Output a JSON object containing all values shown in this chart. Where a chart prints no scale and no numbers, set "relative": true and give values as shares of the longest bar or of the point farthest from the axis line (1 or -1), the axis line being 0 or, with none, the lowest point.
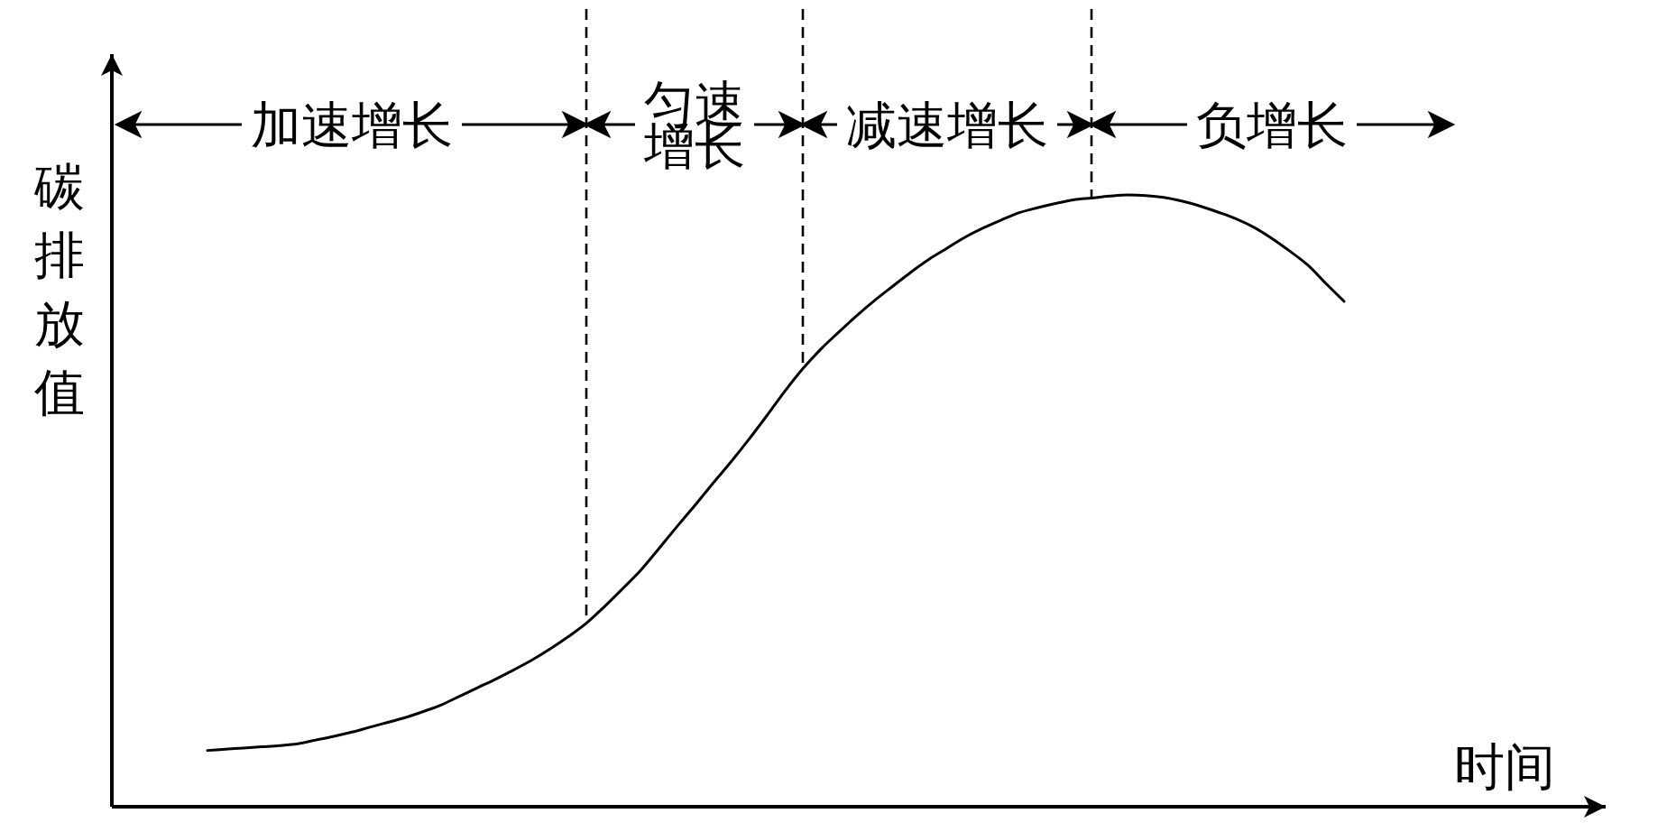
{
  "chart_data": {
    "type": "line",
    "relative": true,
    "xlabel": "时间",
    "ylabel": "碳排放值",
    "tick_labels": false,
    "marker": "none",
    "line_style": "solid",
    "categories": [
      null,
      null,
      null,
      null,
      null,
      null,
      null,
      null,
      null,
      null,
      null,
      null,
      null,
      null,
      null,
      null,
      null,
      null,
      null,
      null,
      null,
      null,
      null,
      null,
      null,
      null,
      null,
      null,
      null,
      null,
      null,
      null,
      null,
      null,
      null,
      null,
      null,
      null,
      null,
      null,
      null,
      null,
      null,
      null,
      null,
      null,
      null,
      null,
      null,
      null,
      null,
      null,
      null,
      null,
      null,
      null,
      null,
      null,
      null,
      null,
      null,
      null,
      null,
      null,
      null,
      null,
      null,
      null,
      null,
      null,
      null,
      null,
      null,
      null,
      null,
      null,
      null,
      null,
      null,
      null,
      null,
      null,
      null
    ],
    "series": [
      {
        "color": "#000000",
        "values": [
          null,
          null,
          null,
          null,
          null,
          0.092,
          0.094,
          0.096,
          0.098,
          0.1,
          0.103,
          0.109,
          0.115,
          0.122,
          0.13,
          0.138,
          0.146,
          0.156,
          0.167,
          0.181,
          0.195,
          0.209,
          0.224,
          0.24,
          0.258,
          0.278,
          0.3,
          0.327,
          0.356,
          0.386,
          0.421,
          0.457,
          0.492,
          0.528,
          0.563,
          0.6,
          0.639,
          0.679,
          0.716,
          0.748,
          0.776,
          0.803,
          0.828,
          0.851,
          0.874,
          0.895,
          0.913,
          0.931,
          0.946,
          0.959,
          0.971,
          0.979,
          0.986,
          0.992,
          0.995,
          0.998,
          1,
          0.999,
          0.996,
          0.99,
          0.982,
          0.972,
          0.961,
          0.947,
          0.929,
          0.908,
          0.885,
          0.855,
          0.826,
          null,
          null,
          null,
          null,
          null,
          null,
          null,
          null,
          null,
          null,
          null,
          null,
          null,
          null
        ]
      }
    ],
    "annotations": [
      "加速增长",
      "匀速增长",
      "减速增长",
      "负增长"
    ]
  }
}
